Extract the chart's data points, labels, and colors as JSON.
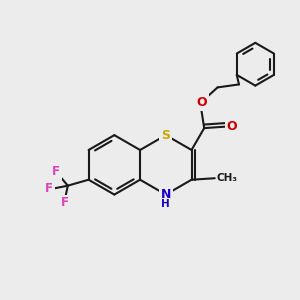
{
  "bg_color": "#ececec",
  "bond_color": "#1a1a1a",
  "S_color": "#c8a800",
  "N_color": "#1a00cc",
  "O_color": "#cc0000",
  "F_color": "#dd44bb",
  "lw": 1.5,
  "figsize": [
    3.0,
    3.0
  ],
  "dpi": 100,
  "xlim": [
    0,
    10
  ],
  "ylim": [
    0,
    10
  ]
}
